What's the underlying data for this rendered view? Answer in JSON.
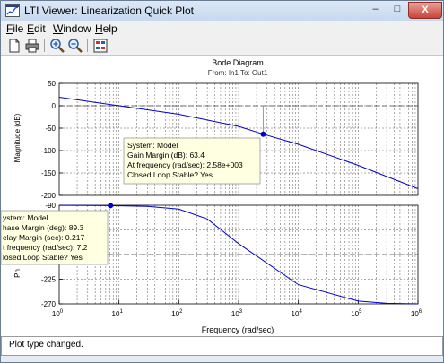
{
  "window": {
    "title": "LTI Viewer: Linearization Quick Plot"
  },
  "titlebar_buttons": {
    "minimize": "–",
    "maximize": "□",
    "close": "X"
  },
  "menu": [
    {
      "label_u": "F",
      "label_rest": "ile"
    },
    {
      "label_u": "E",
      "label_rest": "dit"
    },
    {
      "label_u": "W",
      "label_rest": "indow"
    },
    {
      "label_u": "H",
      "label_rest": "elp"
    }
  ],
  "toolbar": {
    "icons": [
      "new-file-icon",
      "print-icon",
      "zoom-in-icon",
      "zoom-out-icon",
      "plot-configuration-icon"
    ]
  },
  "plot": {
    "title": "Bode Diagram",
    "subtitle": "From: In1  To: Out1",
    "xlabel": "Frequency  (rad/sec)",
    "mag_ylabel": "Magnitude (dB)",
    "phase_ylabel_partial": "Ph"
  },
  "chart_data": [
    {
      "type": "line",
      "name": "magnitude",
      "xscale": "log",
      "xlim": [
        1,
        1000000
      ],
      "ylim": [
        -200,
        50
      ],
      "yticks": [
        50,
        0,
        -50,
        -100,
        -150,
        -200
      ],
      "grid": true,
      "x": [
        1,
        10,
        100,
        1000,
        2580,
        10000,
        100000,
        1000000
      ],
      "y": [
        19,
        0,
        -19,
        -46,
        -63.4,
        -86,
        -133,
        -185
      ],
      "marker": {
        "x": 2580,
        "y": -63.4
      },
      "reference_line_y": 0
    },
    {
      "type": "line",
      "name": "phase",
      "xscale": "log",
      "xlim": [
        1,
        1000000
      ],
      "ylim": [
        -270,
        -90
      ],
      "yticks": [
        -90,
        -135,
        -180,
        -225,
        -270
      ],
      "grid": true,
      "x": [
        1,
        7.2,
        30,
        100,
        300,
        1000,
        10000,
        100000,
        300000,
        1000000
      ],
      "y": [
        -90.2,
        -90.7,
        -92,
        -97,
        -115,
        -160,
        -235,
        -265,
        -269,
        -270
      ],
      "marker": {
        "x": 7.2,
        "y": -90.7
      },
      "reference_line_y": -180,
      "xtick_exponents": [
        "0",
        "1",
        "2",
        "3",
        "4",
        "5",
        "6"
      ]
    }
  ],
  "gain_tooltip": {
    "line1": "System: Model",
    "line2": "Gain Margin (dB): 63.4",
    "line3": "At frequency (rad/sec): 2.58e+003",
    "line4": "Closed Loop Stable? Yes"
  },
  "phase_tooltip": {
    "line1": "ystem: Model",
    "line2": "hase Margin (deg): 89.3",
    "line3": "elay Margin (sec): 0.217",
    "line4": "t frequency (rad/sec): 7.2",
    "line5": "losed Loop Stable? Yes"
  },
  "colors": {
    "curve": "#0000cc",
    "marker": "#0000cc",
    "tooltip_bg": "#ffffe1"
  },
  "status": {
    "text": "Plot type changed."
  }
}
